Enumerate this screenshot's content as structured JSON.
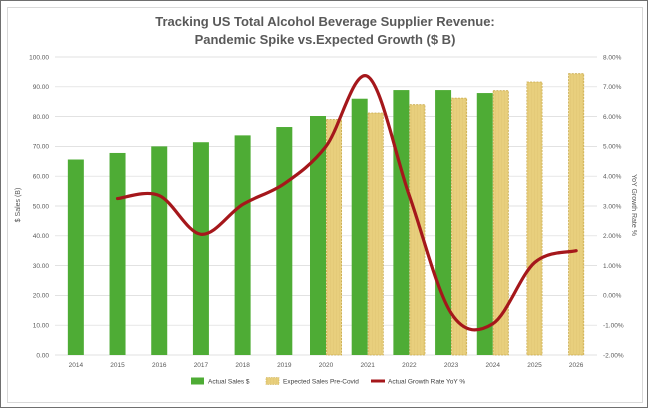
{
  "chart_data": {
    "type": "bar",
    "title": "Tracking US Total Alcohol Beverage Supplier Revenue:",
    "subtitle": "Pandemic Spike vs.Expected Growth ($ B)",
    "categories": [
      "2014",
      "2015",
      "2016",
      "2017",
      "2018",
      "2019",
      "2020",
      "2021",
      "2022",
      "2023",
      "2024",
      "2025",
      "2026"
    ],
    "ylabel": "$ Sales (B)",
    "y2label": "YoY Growth Rate %",
    "ylim": [
      0,
      100
    ],
    "y2lim": [
      -2,
      8
    ],
    "y_ticks": [
      "0.00",
      "10.00",
      "20.00",
      "30.00",
      "40.00",
      "50.00",
      "60.00",
      "70.00",
      "80.00",
      "90.00",
      "100.00"
    ],
    "y2_ticks": [
      "-2.00%",
      "-1.00%",
      "0.00%",
      "1.00%",
      "2.00%",
      "3.00%",
      "4.00%",
      "5.00%",
      "6.00%",
      "7.00%",
      "8.00%"
    ],
    "series": [
      {
        "name": "Actual Sales $",
        "kind": "bar",
        "color": "#4eac35",
        "values": [
          65.6,
          67.8,
          70.0,
          71.4,
          73.7,
          76.5,
          80.2,
          86.0,
          88.9,
          88.9,
          87.9,
          null,
          null
        ]
      },
      {
        "name": "Expected Sales Pre-Covid",
        "kind": "bar",
        "color": "#e8cf7d",
        "pattern": "dashed",
        "values": [
          null,
          null,
          null,
          null,
          null,
          null,
          79.0,
          81.2,
          84.0,
          86.2,
          88.7,
          91.6,
          94.4
        ]
      },
      {
        "name": "Actual Growth Rate YoY %",
        "kind": "line",
        "axis": "secondary",
        "color": "#a5171b",
        "values": [
          null,
          3.25,
          3.35,
          2.05,
          3.05,
          3.75,
          5.0,
          7.35,
          3.35,
          -0.6,
          -0.95,
          1.1,
          1.5
        ]
      }
    ],
    "legend_position": "bottom",
    "grid": true
  }
}
